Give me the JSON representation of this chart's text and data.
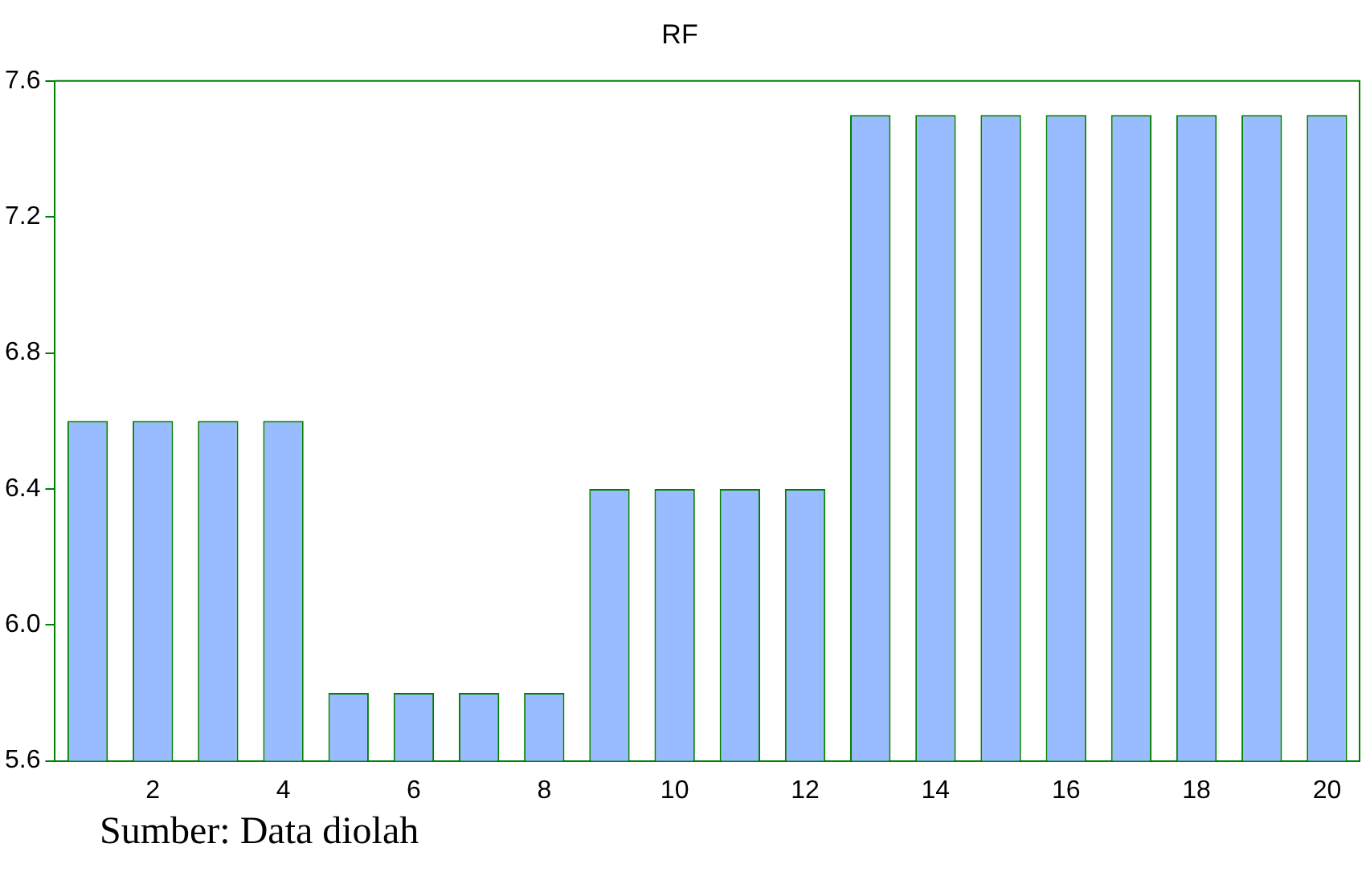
{
  "chart_data": {
    "type": "bar",
    "title": "RF",
    "categories": [
      null,
      "2",
      null,
      "4",
      null,
      "6",
      null,
      "8",
      null,
      "10",
      null,
      "12",
      null,
      "14",
      null,
      "16",
      null,
      "18",
      null,
      "20"
    ],
    "values": [
      6.6,
      6.6,
      6.6,
      6.6,
      5.8,
      5.8,
      5.8,
      5.8,
      6.4,
      6.4,
      6.4,
      6.4,
      7.5,
      7.5,
      7.5,
      7.5,
      7.5,
      7.5,
      7.5,
      7.5
    ],
    "color": "#99bbff",
    "ylim": [
      5.6,
      7.6
    ],
    "yticks": [
      {
        "value": 5.6,
        "label": "5.6"
      },
      {
        "value": 6.0,
        "label": "6.0"
      },
      {
        "value": 6.4,
        "label": "6.4"
      },
      {
        "value": 6.8,
        "label": "6.8"
      },
      {
        "value": 7.2,
        "label": "7.2"
      },
      {
        "value": 7.6,
        "label": "7.6"
      }
    ],
    "grid": false,
    "legend": false,
    "annotations": [
      "Sumber: Data diolah"
    ]
  }
}
